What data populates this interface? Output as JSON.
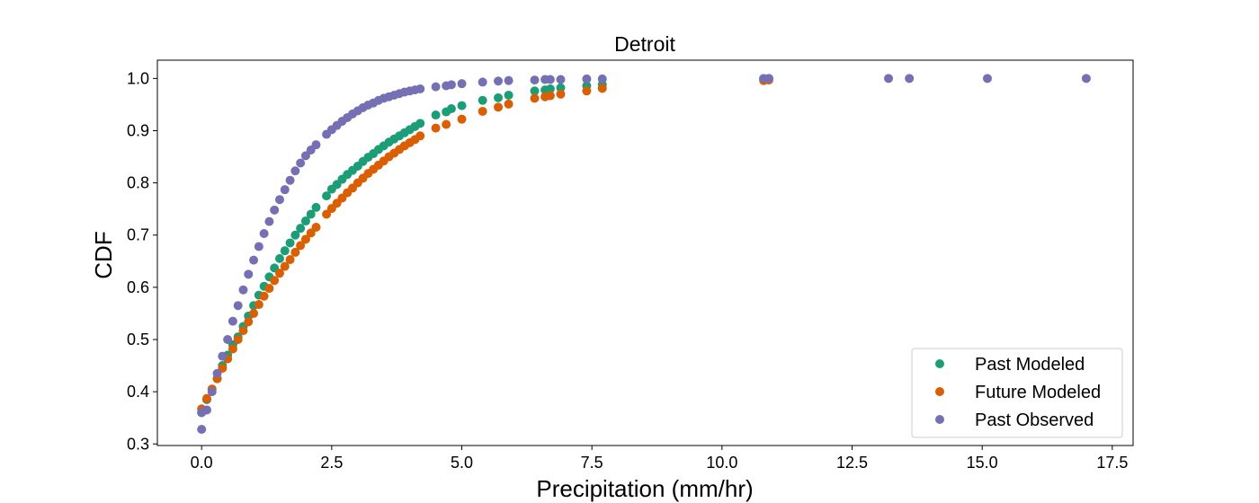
{
  "chart_data": {
    "type": "scatter",
    "title": "Detroit",
    "xlabel": "Precipitation (mm/hr)",
    "ylabel": "CDF",
    "xlim": [
      -0.85,
      17.9
    ],
    "ylim": [
      0.297,
      1.035
    ],
    "xticks": [
      0.0,
      2.5,
      5.0,
      7.5,
      10.0,
      12.5,
      15.0,
      17.5
    ],
    "xtick_labels": [
      "0.0",
      "2.5",
      "5.0",
      "7.5",
      "10.0",
      "12.5",
      "15.0",
      "17.5"
    ],
    "yticks": [
      0.3,
      0.4,
      0.5,
      0.6,
      0.7,
      0.8,
      0.9,
      1.0
    ],
    "ytick_labels": [
      "0.3",
      "0.4",
      "0.5",
      "0.6",
      "0.7",
      "0.8",
      "0.9",
      "1.0"
    ],
    "grid": false,
    "legend_position": "bottom-right",
    "series": [
      {
        "name": "Past Modeled",
        "color": "#1b9e77",
        "x": [
          0.0,
          0.1,
          0.2,
          0.3,
          0.4,
          0.5,
          0.6,
          0.7,
          0.8,
          0.9,
          1.0,
          1.1,
          1.2,
          1.3,
          1.4,
          1.5,
          1.6,
          1.7,
          1.8,
          1.9,
          2.0,
          2.1,
          2.2,
          2.4,
          2.5,
          2.6,
          2.7,
          2.8,
          2.9,
          3.0,
          3.1,
          3.2,
          3.3,
          3.4,
          3.5,
          3.6,
          3.7,
          3.8,
          3.9,
          4.0,
          4.1,
          4.2,
          4.5,
          4.7,
          4.8,
          5.0,
          5.4,
          5.7,
          5.9,
          6.4,
          6.6,
          6.7,
          6.9,
          7.4,
          7.7,
          10.8,
          10.9
        ],
        "y": [
          0.36,
          0.385,
          0.405,
          0.425,
          0.45,
          0.47,
          0.49,
          0.505,
          0.525,
          0.545,
          0.565,
          0.585,
          0.602,
          0.62,
          0.637,
          0.655,
          0.67,
          0.685,
          0.7,
          0.713,
          0.727,
          0.74,
          0.753,
          0.775,
          0.788,
          0.797,
          0.807,
          0.816,
          0.824,
          0.832,
          0.841,
          0.849,
          0.856,
          0.864,
          0.871,
          0.878,
          0.884,
          0.89,
          0.896,
          0.902,
          0.908,
          0.914,
          0.93,
          0.936,
          0.942,
          0.948,
          0.958,
          0.963,
          0.968,
          0.976,
          0.978,
          0.98,
          0.982,
          0.986,
          0.988,
          0.999,
          1.0
        ]
      },
      {
        "name": "Future Modeled",
        "color": "#d95f02",
        "x": [
          0.0,
          0.1,
          0.2,
          0.3,
          0.4,
          0.5,
          0.6,
          0.7,
          0.8,
          0.9,
          1.0,
          1.1,
          1.2,
          1.3,
          1.4,
          1.5,
          1.6,
          1.7,
          1.8,
          1.9,
          2.0,
          2.1,
          2.2,
          2.4,
          2.5,
          2.6,
          2.7,
          2.8,
          2.9,
          3.0,
          3.1,
          3.2,
          3.3,
          3.4,
          3.5,
          3.6,
          3.7,
          3.8,
          3.9,
          4.0,
          4.1,
          4.2,
          4.5,
          4.7,
          5.0,
          5.4,
          5.7,
          5.9,
          6.4,
          6.6,
          6.7,
          6.9,
          7.4,
          7.7,
          10.8,
          10.9
        ],
        "y": [
          0.367,
          0.387,
          0.405,
          0.425,
          0.445,
          0.463,
          0.482,
          0.5,
          0.517,
          0.534,
          0.55,
          0.567,
          0.583,
          0.598,
          0.613,
          0.627,
          0.64,
          0.653,
          0.667,
          0.68,
          0.692,
          0.704,
          0.715,
          0.74,
          0.751,
          0.761,
          0.771,
          0.781,
          0.79,
          0.8,
          0.809,
          0.818,
          0.826,
          0.834,
          0.842,
          0.85,
          0.857,
          0.864,
          0.871,
          0.877,
          0.883,
          0.89,
          0.905,
          0.912,
          0.922,
          0.937,
          0.945,
          0.951,
          0.962,
          0.965,
          0.967,
          0.97,
          0.976,
          0.981,
          0.996,
          0.997
        ]
      },
      {
        "name": "Past Observed",
        "color": "#7570b3",
        "x": [
          0.0,
          0.0,
          0.1,
          0.2,
          0.3,
          0.4,
          0.5,
          0.6,
          0.7,
          0.8,
          0.9,
          1.0,
          1.1,
          1.2,
          1.3,
          1.4,
          1.5,
          1.6,
          1.7,
          1.8,
          1.9,
          2.0,
          2.1,
          2.2,
          2.4,
          2.5,
          2.6,
          2.7,
          2.8,
          2.9,
          3.0,
          3.1,
          3.2,
          3.3,
          3.4,
          3.5,
          3.6,
          3.7,
          3.8,
          3.9,
          4.0,
          4.1,
          4.2,
          4.5,
          4.7,
          4.8,
          5.0,
          5.4,
          5.7,
          5.9,
          6.4,
          6.6,
          6.7,
          6.9,
          7.4,
          7.7,
          10.8,
          10.9,
          13.2,
          13.6,
          15.1,
          17.0
        ],
        "y": [
          0.328,
          0.36,
          0.365,
          0.4,
          0.435,
          0.468,
          0.5,
          0.535,
          0.565,
          0.595,
          0.625,
          0.652,
          0.678,
          0.703,
          0.726,
          0.748,
          0.768,
          0.787,
          0.805,
          0.823,
          0.838,
          0.852,
          0.863,
          0.873,
          0.893,
          0.902,
          0.91,
          0.918,
          0.925,
          0.932,
          0.938,
          0.944,
          0.949,
          0.953,
          0.958,
          0.962,
          0.965,
          0.968,
          0.971,
          0.974,
          0.976,
          0.978,
          0.98,
          0.984,
          0.986,
          0.988,
          0.99,
          0.993,
          0.995,
          0.996,
          0.997,
          0.998,
          0.998,
          0.998,
          0.999,
          0.999,
          1.0,
          1.0,
          1.0,
          1.0,
          1.0,
          1.0
        ]
      }
    ]
  }
}
